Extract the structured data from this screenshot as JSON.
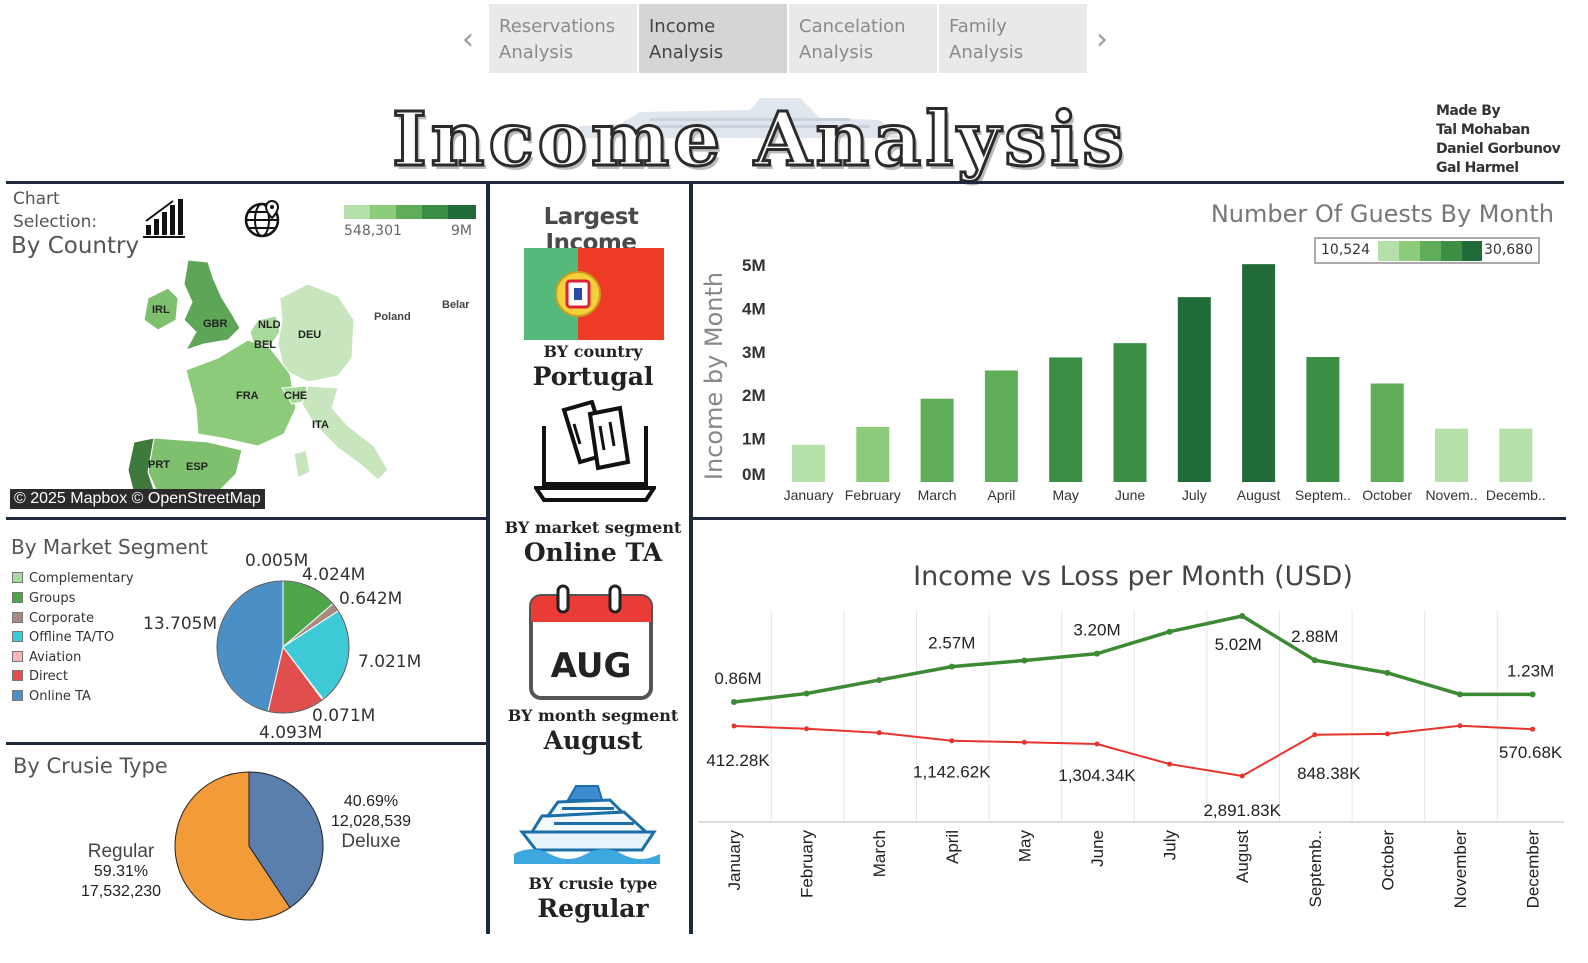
{
  "nav": {
    "tabs": [
      {
        "label_line1": "Reservations",
        "label_line2": "Analysis"
      },
      {
        "label_line1": "Income",
        "label_line2": "Analysis"
      },
      {
        "label_line1": "Cancelation",
        "label_line2": "Analysis"
      },
      {
        "label_line1": "Family",
        "label_line2": "Analysis"
      }
    ],
    "prev_icon": "chevron-left-icon",
    "next_icon": "chevron-right-icon"
  },
  "header": {
    "title": "Income Analysis",
    "credits": [
      "Made By",
      "Tal Mohaban",
      "Daniel Gorbunov",
      "Gal Harmel"
    ]
  },
  "chart_selection": {
    "label_line1": "Chart",
    "label_line2": "Selection:",
    "icons": [
      "bar-chart-icon",
      "globe-icon"
    ],
    "legend_min": "548,301",
    "legend_max": "9M"
  },
  "map_panel": {
    "title": "By Country",
    "attribution": "© 2025 Mapbox © OpenStreetMap",
    "country_labels": [
      "IRL",
      "GBR",
      "NLD",
      "BEL",
      "DEU",
      "Poland",
      "Belar",
      "FRA",
      "CHE",
      "ITA",
      "PRT",
      "ESP"
    ]
  },
  "market_segment": {
    "title": "By Market Segment",
    "legend": [
      {
        "label": "Complementary",
        "color": "#a8dba0"
      },
      {
        "label": "Groups",
        "color": "#4ea64a"
      },
      {
        "label": "Corporate",
        "color": "#a88a80"
      },
      {
        "label": "Offline TA/TO",
        "color": "#3ec9d6"
      },
      {
        "label": "Aviation",
        "color": "#f7b6b8"
      },
      {
        "label": "Direct",
        "color": "#e04e4e"
      },
      {
        "label": "Online TA",
        "color": "#4a90c6"
      }
    ],
    "labels": {
      "complementary": "0.005M",
      "groups": "4.024M",
      "corporate": "0.642M",
      "offline": "7.021M",
      "aviation": "0.071M",
      "direct": "4.093M",
      "online": "13.705M"
    }
  },
  "cruise_type": {
    "title": "By Crusie Type",
    "deluxe": {
      "name": "Deluxe",
      "pct": "40.69%",
      "value": "12,028,539",
      "color": "#5b7fad"
    },
    "regular": {
      "name": "Regular",
      "pct": "59.31%",
      "value": "17,532,230",
      "color": "#f29b38"
    }
  },
  "largest_income": {
    "title": "Largest Income",
    "country_label": "BY country",
    "country_value": "Portugal",
    "market_label": "BY market segment",
    "market_value": "Online TA",
    "month_label": "BY month segment",
    "month_value": "August",
    "calendar_text": "AUG",
    "cruise_label": "BY crusie type",
    "cruise_value": "Regular",
    "icons": [
      "portugal-flag-icon",
      "tickets-laptop-icon",
      "calendar-icon",
      "cruise-ship-icon"
    ]
  },
  "guests_chart": {
    "title": "Number Of Guests By Month",
    "legend_min": "10,524",
    "legend_max": "30,680"
  },
  "income_loss_chart": {
    "title": "Income vs Loss per Month (USD)"
  },
  "chart_data": [
    {
      "type": "bar",
      "title": "Number Of Guests By Month",
      "ylabel": "Income by Month",
      "categories": [
        "January",
        "February",
        "March",
        "April",
        "May",
        "June",
        "July",
        "August",
        "Septem..",
        "October",
        "Novem..",
        "Decemb.."
      ],
      "values": [
        0.86,
        1.27,
        1.92,
        2.57,
        2.87,
        3.2,
        4.26,
        5.02,
        2.88,
        2.27,
        1.23,
        1.23
      ],
      "value_unit": "M",
      "color_by_guests": [
        13000,
        15500,
        19500,
        22500,
        23500,
        24000,
        30680,
        30000,
        23500,
        22000,
        10524,
        10800
      ],
      "yticks": [
        "0M",
        "1M",
        "2M",
        "3M",
        "4M",
        "5M"
      ],
      "ylim": [
        0,
        5.3
      ]
    },
    {
      "type": "line",
      "title": "Income vs Loss per Month (USD)",
      "categories": [
        "January",
        "February",
        "March",
        "April",
        "May",
        "June",
        "July",
        "August",
        "Septemb..",
        "October",
        "November",
        "December"
      ],
      "series": [
        {
          "name": "Income",
          "color": "#3d8a35",
          "values": [
            0.86,
            1.27,
            1.92,
            2.57,
            2.87,
            3.2,
            4.26,
            5.02,
            2.88,
            2.27,
            1.23,
            1.23
          ],
          "data_labels": {
            "0": "0.86M",
            "3": "2.57M",
            "5": "3.20M",
            "7": "5.02M",
            "8": "2.88M",
            "11": "1.23M"
          }
        },
        {
          "name": "Loss",
          "color": "#e8332c",
          "values": [
            0.41228,
            0.55,
            0.75,
            1.14262,
            1.22,
            1.30434,
            2.3,
            2.89183,
            0.84838,
            0.8,
            0.4,
            0.57068
          ],
          "data_labels": {
            "0": "412.28K",
            "3": "1,142.62K",
            "5": "1,304.34K",
            "7": "2,891.83K",
            "8": "848.38K",
            "11": "570.68K"
          }
        }
      ]
    },
    {
      "type": "pie",
      "title": "By Market Segment",
      "labels": [
        "Complementary",
        "Groups",
        "Corporate",
        "Offline TA/TO",
        "Aviation",
        "Direct",
        "Online TA"
      ],
      "values": [
        0.005,
        4.024,
        0.642,
        7.021,
        0.071,
        4.093,
        13.705
      ]
    },
    {
      "type": "pie",
      "title": "By Crusie Type",
      "labels": [
        "Deluxe",
        "Regular"
      ],
      "values": [
        12028539,
        17532230
      ]
    }
  ]
}
